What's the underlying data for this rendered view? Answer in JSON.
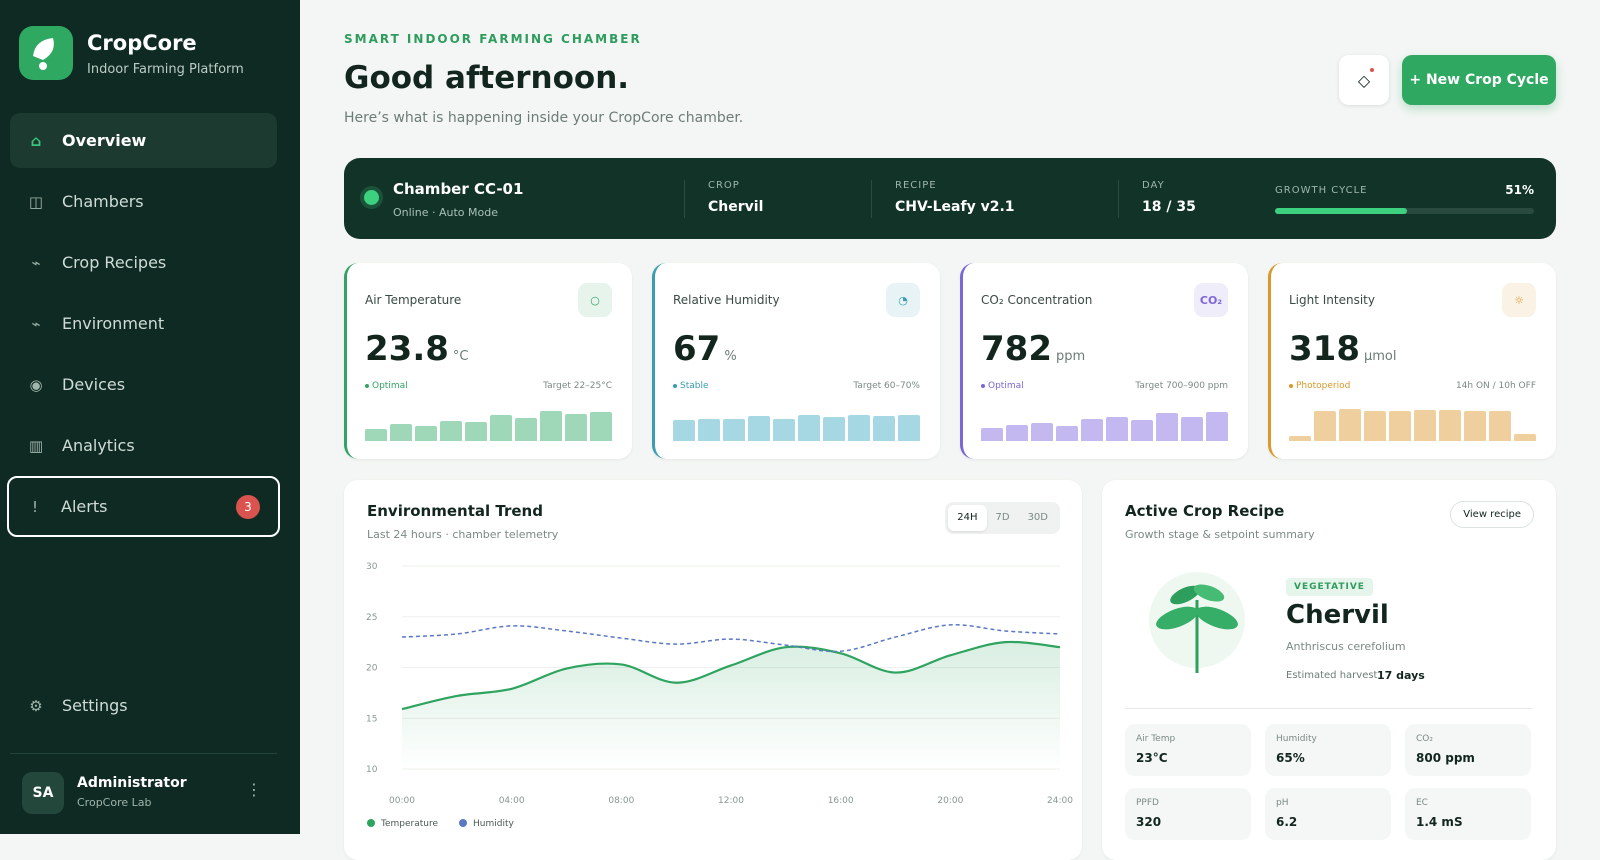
{
  "sidebar": {
    "brand": "CropCore",
    "tagline": "Indoor Farming Platform",
    "nav": [
      {
        "icon": "⌂",
        "label": "Overview"
      },
      {
        "icon": "◫",
        "label": "Chambers"
      },
      {
        "icon": "⌁",
        "label": "Crop Recipes"
      },
      {
        "icon": "⌁",
        "label": "Environment"
      },
      {
        "icon": "◉",
        "label": "Devices"
      },
      {
        "icon": "▥",
        "label": "Analytics"
      },
      {
        "icon": "!",
        "label": "Alerts",
        "badge": 3
      }
    ],
    "settings": {
      "icon": "⚙",
      "label": "Settings"
    },
    "user": {
      "initials": "SA",
      "name": "Administrator",
      "org": "CropCore Lab",
      "menu": "⋮"
    }
  },
  "header": {
    "eyebrow": "SMART INDOOR FARMING CHAMBER",
    "title": "Good afternoon.",
    "subtitle": "Here’s what is happening inside your CropCore chamber.",
    "icon": "◇",
    "button": "+ New Crop Cycle"
  },
  "chamber": {
    "name": "Chamber CC-01",
    "status": "Online · Auto Mode",
    "fields": [
      {
        "label": "CROP",
        "value": "Chervil"
      },
      {
        "label": "RECIPE",
        "value": "CHV-Leafy v2.1"
      },
      {
        "label": "DAY",
        "value": "18 / 35"
      }
    ],
    "growth": {
      "label": "GROWTH CYCLE",
      "value": 51,
      "value_label": "51%",
      "max": 100
    }
  },
  "metrics": [
    {
      "label": "Air Temperature",
      "icon": "○",
      "value": 23.8,
      "unit": "°C",
      "status": "Optimal",
      "target": "Target 22–25°C",
      "color": "#34a266",
      "bar_color": "#9fd8b9",
      "bars": [
        38,
        52,
        48,
        62,
        58,
        80,
        72,
        95,
        85,
        90
      ]
    },
    {
      "label": "Relative Humidity",
      "icon": "◔",
      "value": 67,
      "unit": "%",
      "status": "Stable",
      "target": "Target 60–70%",
      "color": "#3a9db0",
      "bar_color": "#a6d8e4",
      "bars": [
        65,
        70,
        70,
        78,
        70,
        80,
        75,
        82,
        78,
        82
      ]
    },
    {
      "label": "CO₂ Concentration",
      "icon": "CO₂",
      "value": 782,
      "unit": "ppm",
      "status": "Optimal",
      "target": "Target 700–900 ppm",
      "color": "#7b68d6",
      "bar_color": "#c3b8f0",
      "bars": [
        42,
        50,
        55,
        48,
        68,
        75,
        65,
        88,
        75,
        92
      ]
    },
    {
      "label": "Light Intensity",
      "icon": "☼",
      "value": 318,
      "unit": "μmol",
      "status": "Photoperiod",
      "target": "14h ON / 10h OFF",
      "color": "#d9992b",
      "bar_color": "#f0cf9e",
      "bars": [
        15,
        95,
        100,
        95,
        95,
        96,
        98,
        95,
        95,
        22
      ]
    }
  ],
  "trend": {
    "type": "line",
    "title": "Environmental Trend",
    "subtitle": "Last 24 hours · chamber telemetry",
    "tabs": [
      "24H",
      "7D",
      "30D"
    ],
    "x": [
      0,
      2,
      4,
      6,
      8,
      10,
      12,
      14,
      16,
      18,
      20,
      22,
      24
    ],
    "xlim": [
      0,
      24
    ],
    "xticks": [
      {
        "value": 0,
        "label": "00:00"
      },
      {
        "value": 4,
        "label": "04:00"
      },
      {
        "value": 8,
        "label": "08:00"
      },
      {
        "value": 12,
        "label": "12:00"
      },
      {
        "value": 16,
        "label": "16:00"
      },
      {
        "value": 20,
        "label": "20:00"
      },
      {
        "value": 24,
        "label": "24:00"
      }
    ],
    "ylim": [
      10,
      30
    ],
    "yticks": [
      10,
      15,
      20,
      25,
      30
    ],
    "grid": true,
    "series": [
      {
        "name": "Temperature",
        "color": "#2ea45f",
        "values": [
          15.9,
          17.2,
          17.9,
          19.9,
          20.3,
          18.5,
          20.2,
          22,
          21.4,
          19.5,
          21.2,
          22.5,
          22
        ]
      },
      {
        "name": "Humidity",
        "color": "#5b78c4",
        "dashed": true,
        "values": [
          23,
          23.3,
          24.1,
          23.6,
          22.9,
          22.3,
          22.8,
          22.2,
          21.6,
          23,
          24.2,
          23.6,
          23.3
        ]
      }
    ]
  },
  "recipe": {
    "title": "Active Crop Recipe",
    "subtitle": "Growth stage & setpoint summary",
    "button": "View recipe",
    "stage": "VEGETATIVE",
    "name": "Chervil",
    "latin": "Anthriscus cerefolium",
    "harvest_label": "Estimated harvest",
    "harvest_value": "17 days",
    "setpoints": [
      {
        "label": "Air Temp",
        "value": "23°C"
      },
      {
        "label": "Humidity",
        "value": "65%"
      },
      {
        "label": "CO₂",
        "value": "800 ppm"
      },
      {
        "label": "PPFD",
        "value": "320"
      },
      {
        "label": "pH",
        "value": "6.2"
      },
      {
        "label": "EC",
        "value": "1.4 mS"
      }
    ]
  }
}
